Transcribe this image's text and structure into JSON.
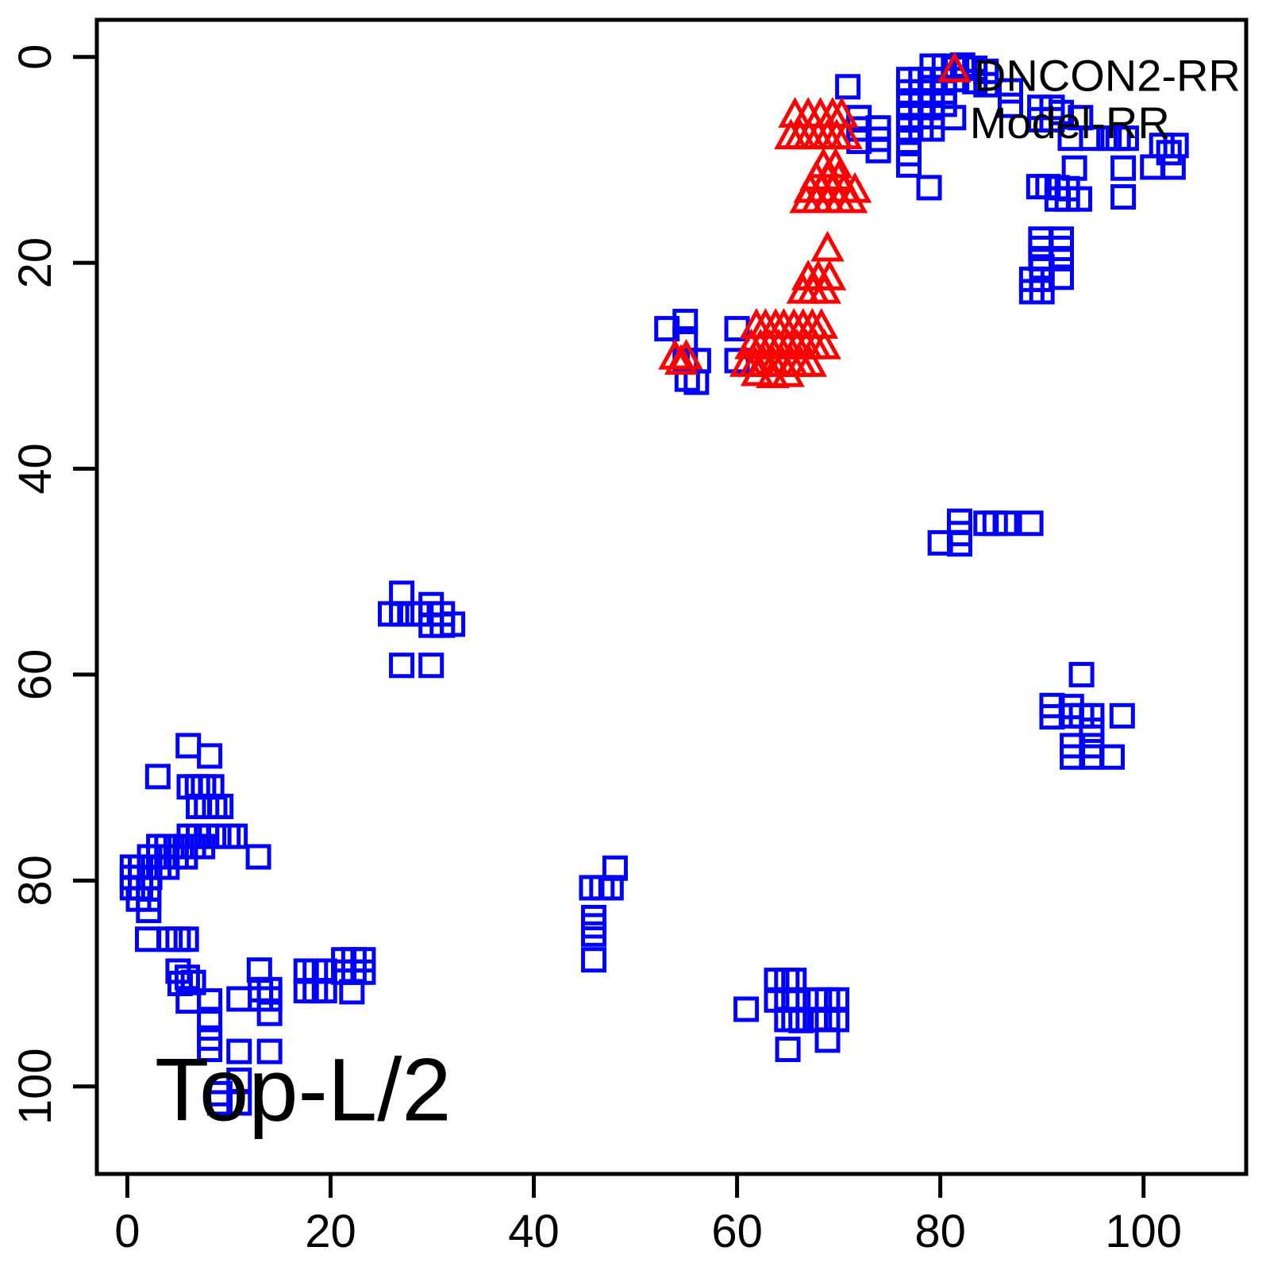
{
  "figure": {
    "background": "#FFFFFF",
    "axis_color": "#000000",
    "text_color": "#000000"
  },
  "chart_data": {
    "type": "scatter",
    "title": "",
    "xlabel": "",
    "ylabel": "",
    "grid": false,
    "x_ticks": [
      0,
      20,
      40,
      60,
      80,
      100
    ],
    "y_ticks": [
      0,
      20,
      40,
      60,
      80,
      100
    ],
    "xlim": [
      -3.0,
      110.1
    ],
    "ylim": [
      -3.6,
      108.5
    ],
    "y_axis_inverted": true,
    "annotation": {
      "text": "Top-L/2",
      "x": 2.7,
      "y": 103.3
    },
    "legend": {
      "position": "top-right",
      "entries": [
        {
          "label": "DNCON2-RR",
          "x": 83.3,
          "y": 3.3
        },
        {
          "label": "Model-RR",
          "x": 82.9,
          "y": 7.9
        }
      ]
    },
    "series": [
      {
        "name": "DNCON2-RR",
        "marker": "square",
        "color": "#0000FF",
        "points": [
          [
            79.2,
            0.9
          ],
          [
            80.4,
            0.9
          ],
          [
            81.6,
            1.1
          ],
          [
            82.2,
            0.8
          ],
          [
            83.4,
            1.1
          ],
          [
            84.5,
            1.4
          ],
          [
            83.4,
            2.4
          ],
          [
            84.5,
            2.7
          ],
          [
            76.9,
            2.2
          ],
          [
            78.1,
            2.2
          ],
          [
            79.2,
            2.2
          ],
          [
            80.4,
            2.2
          ],
          [
            81.6,
            2.2
          ],
          [
            76.9,
            3.4
          ],
          [
            78.1,
            3.4
          ],
          [
            79.2,
            3.4
          ],
          [
            80.4,
            3.4
          ],
          [
            76.9,
            4.6
          ],
          [
            78.1,
            4.6
          ],
          [
            79.2,
            4.6
          ],
          [
            80.4,
            4.6
          ],
          [
            76.9,
            5.8
          ],
          [
            78.1,
            5.8
          ],
          [
            79.2,
            5.8
          ],
          [
            81.3,
            5.9
          ],
          [
            76.9,
            7.0
          ],
          [
            78.1,
            7.0
          ],
          [
            79.2,
            7.0
          ],
          [
            76.9,
            8.2
          ],
          [
            76.9,
            9.4
          ],
          [
            76.9,
            10.5
          ],
          [
            78.9,
            12.7
          ],
          [
            70.9,
            2.9
          ],
          [
            72.0,
            5.9
          ],
          [
            72.0,
            7.0
          ],
          [
            72.0,
            8.2
          ],
          [
            73.9,
            6.9
          ],
          [
            73.9,
            8.0
          ],
          [
            73.9,
            9.1
          ],
          [
            86.9,
            3.3
          ],
          [
            86.9,
            4.7
          ],
          [
            89.8,
            4.9
          ],
          [
            91.0,
            4.9
          ],
          [
            89.8,
            6.1
          ],
          [
            91.0,
            6.1
          ],
          [
            91.9,
            5.4
          ],
          [
            93.8,
            5.9
          ],
          [
            92.8,
            7.9
          ],
          [
            94.9,
            7.9
          ],
          [
            96.6,
            7.9
          ],
          [
            97.5,
            7.9
          ],
          [
            98.3,
            7.9
          ],
          [
            101.8,
            8.6
          ],
          [
            103.2,
            8.6
          ],
          [
            102.5,
            9.3
          ],
          [
            100.9,
            10.7
          ],
          [
            102.9,
            10.7
          ],
          [
            93.2,
            10.8
          ],
          [
            98.0,
            10.8
          ],
          [
            98.0,
            13.6
          ],
          [
            93.7,
            13.8
          ],
          [
            89.7,
            12.6
          ],
          [
            90.6,
            12.6
          ],
          [
            91.5,
            12.7
          ],
          [
            92.5,
            12.8
          ],
          [
            91.5,
            13.8
          ],
          [
            92.5,
            13.8
          ],
          [
            89.9,
            17.7
          ],
          [
            89.9,
            18.6
          ],
          [
            89.9,
            19.6
          ],
          [
            91.9,
            17.7
          ],
          [
            91.9,
            18.6
          ],
          [
            91.9,
            19.6
          ],
          [
            90.0,
            20.4
          ],
          [
            89.0,
            21.6
          ],
          [
            90.0,
            21.6
          ],
          [
            91.9,
            21.4
          ],
          [
            89.0,
            22.8
          ],
          [
            90.0,
            22.8
          ],
          [
            54.9,
            25.7
          ],
          [
            53.1,
            26.4
          ],
          [
            54.9,
            27.4
          ],
          [
            54.9,
            29.5
          ],
          [
            56.2,
            29.5
          ],
          [
            55.1,
            31.3
          ],
          [
            56.0,
            31.6
          ],
          [
            60.0,
            26.4
          ],
          [
            60.0,
            29.5
          ],
          [
            81.9,
            45.1
          ],
          [
            84.5,
            45.3
          ],
          [
            85.4,
            45.3
          ],
          [
            86.4,
            45.3
          ],
          [
            88.9,
            45.3
          ],
          [
            81.9,
            46.3
          ],
          [
            81.9,
            47.3
          ],
          [
            80.0,
            47.2
          ],
          [
            27.0,
            52.1
          ],
          [
            25.9,
            54.1
          ],
          [
            27.0,
            54.1
          ],
          [
            27.8,
            54.1
          ],
          [
            28.6,
            54.1
          ],
          [
            29.9,
            53.2
          ],
          [
            29.9,
            54.1
          ],
          [
            31.0,
            54.1
          ],
          [
            29.9,
            55.2
          ],
          [
            31.0,
            55.2
          ],
          [
            32.0,
            55.1
          ],
          [
            27.0,
            59.1
          ],
          [
            29.9,
            59.1
          ],
          [
            93.9,
            60.0
          ],
          [
            91.0,
            63.0
          ],
          [
            92.9,
            63.1
          ],
          [
            91.0,
            64.1
          ],
          [
            92.9,
            64.0
          ],
          [
            93.9,
            64.0
          ],
          [
            94.9,
            64.0
          ],
          [
            97.9,
            64.0
          ],
          [
            94.9,
            65.4
          ],
          [
            93.0,
            66.9
          ],
          [
            93.0,
            68.0
          ],
          [
            94.9,
            66.9
          ],
          [
            94.9,
            68.0
          ],
          [
            96.9,
            68.0
          ],
          [
            6.0,
            66.9
          ],
          [
            8.1,
            67.9
          ],
          [
            3.0,
            69.9
          ],
          [
            6.1,
            70.9
          ],
          [
            6.9,
            70.9
          ],
          [
            7.5,
            70.9
          ],
          [
            8.3,
            70.9
          ],
          [
            7.0,
            72.8
          ],
          [
            7.8,
            72.8
          ],
          [
            8.6,
            72.8
          ],
          [
            9.2,
            72.8
          ],
          [
            6.1,
            75.7
          ],
          [
            7.0,
            75.7
          ],
          [
            7.8,
            75.7
          ],
          [
            9.0,
            75.7
          ],
          [
            9.9,
            75.7
          ],
          [
            10.6,
            75.7
          ],
          [
            3.1,
            76.7
          ],
          [
            3.9,
            76.7
          ],
          [
            4.8,
            76.7
          ],
          [
            5.7,
            76.7
          ],
          [
            6.5,
            76.7
          ],
          [
            7.4,
            76.7
          ],
          [
            2.2,
            77.7
          ],
          [
            3.1,
            77.7
          ],
          [
            3.9,
            77.7
          ],
          [
            4.8,
            77.7
          ],
          [
            5.7,
            77.7
          ],
          [
            12.9,
            77.7
          ],
          [
            0.5,
            78.7
          ],
          [
            1.3,
            78.7
          ],
          [
            2.2,
            78.7
          ],
          [
            3.1,
            78.7
          ],
          [
            3.9,
            78.7
          ],
          [
            0.5,
            79.7
          ],
          [
            1.3,
            79.7
          ],
          [
            2.2,
            79.7
          ],
          [
            0.5,
            80.7
          ],
          [
            1.3,
            80.7
          ],
          [
            2.1,
            80.8
          ],
          [
            1.1,
            81.8
          ],
          [
            2.1,
            81.8
          ],
          [
            2.1,
            82.9
          ],
          [
            2.0,
            85.7
          ],
          [
            4.2,
            85.7
          ],
          [
            5.0,
            85.7
          ],
          [
            5.8,
            85.7
          ],
          [
            5.0,
            88.8
          ],
          [
            5.9,
            89.4
          ],
          [
            6.5,
            89.9
          ],
          [
            5.2,
            90.0
          ],
          [
            6.0,
            91.7
          ],
          [
            8.1,
            91.7
          ],
          [
            8.1,
            93.5
          ],
          [
            8.1,
            95.3
          ],
          [
            8.1,
            96.4
          ],
          [
            11.0,
            96.6
          ],
          [
            14.0,
            96.6
          ],
          [
            13.0,
            88.7
          ],
          [
            11.0,
            91.5
          ],
          [
            13.1,
            90.6
          ],
          [
            14.0,
            90.6
          ],
          [
            13.1,
            91.5
          ],
          [
            14.0,
            91.5
          ],
          [
            14.0,
            92.9
          ],
          [
            17.6,
            88.8
          ],
          [
            18.5,
            88.8
          ],
          [
            19.4,
            88.8
          ],
          [
            17.6,
            90.7
          ],
          [
            18.5,
            90.7
          ],
          [
            19.4,
            90.7
          ],
          [
            21.3,
            87.7
          ],
          [
            22.3,
            87.7
          ],
          [
            23.2,
            87.7
          ],
          [
            21.3,
            88.9
          ],
          [
            22.3,
            88.9
          ],
          [
            23.2,
            88.9
          ],
          [
            22.1,
            90.8
          ],
          [
            11.0,
            99.4
          ],
          [
            9.1,
            100.7
          ],
          [
            11.0,
            101.6
          ],
          [
            9.1,
            101.6
          ],
          [
            48.0,
            78.8
          ],
          [
            45.7,
            80.7
          ],
          [
            46.7,
            80.7
          ],
          [
            47.6,
            80.7
          ],
          [
            45.9,
            83.6
          ],
          [
            45.9,
            84.4
          ],
          [
            45.9,
            85.2
          ],
          [
            45.9,
            87.7
          ],
          [
            60.9,
            92.5
          ],
          [
            63.9,
            89.7
          ],
          [
            64.9,
            89.7
          ],
          [
            65.6,
            89.7
          ],
          [
            63.9,
            91.6
          ],
          [
            64.9,
            91.6
          ],
          [
            65.6,
            91.6
          ],
          [
            64.9,
            93.5
          ],
          [
            65.6,
            93.5
          ],
          [
            66.3,
            93.6
          ],
          [
            65.0,
            96.4
          ],
          [
            68.1,
            91.6
          ],
          [
            68.9,
            91.6
          ],
          [
            69.8,
            91.6
          ],
          [
            68.1,
            93.5
          ],
          [
            68.9,
            93.5
          ],
          [
            69.8,
            93.5
          ],
          [
            68.9,
            95.5
          ]
        ]
      },
      {
        "name": "Model-RR",
        "marker": "triangle",
        "color": "#FF0000",
        "points": [
          [
            81.4,
            1.2
          ],
          [
            65.7,
            5.6
          ],
          [
            67.0,
            5.6
          ],
          [
            68.2,
            5.6
          ],
          [
            69.4,
            5.6
          ],
          [
            70.3,
            5.6
          ],
          [
            65.3,
            7.7
          ],
          [
            66.2,
            7.7
          ],
          [
            67.1,
            7.7
          ],
          [
            68.0,
            7.7
          ],
          [
            68.9,
            7.7
          ],
          [
            69.8,
            7.7
          ],
          [
            70.7,
            7.7
          ],
          [
            68.5,
            10.5
          ],
          [
            69.7,
            10.5
          ],
          [
            67.8,
            11.7
          ],
          [
            68.9,
            11.7
          ],
          [
            70.0,
            11.7
          ],
          [
            67.2,
            12.9
          ],
          [
            68.3,
            12.9
          ],
          [
            69.4,
            12.9
          ],
          [
            70.5,
            12.9
          ],
          [
            71.6,
            12.9
          ],
          [
            66.8,
            13.9
          ],
          [
            67.9,
            13.9
          ],
          [
            69.0,
            13.9
          ],
          [
            70.1,
            13.9
          ],
          [
            71.2,
            13.9
          ],
          [
            68.9,
            18.6
          ],
          [
            67.0,
            21.4
          ],
          [
            68.0,
            21.4
          ],
          [
            69.1,
            21.4
          ],
          [
            66.5,
            22.7
          ],
          [
            67.5,
            22.7
          ],
          [
            68.6,
            22.7
          ],
          [
            61.9,
            26.1
          ],
          [
            62.8,
            26.1
          ],
          [
            63.8,
            26.1
          ],
          [
            64.6,
            26.1
          ],
          [
            65.6,
            26.1
          ],
          [
            66.5,
            26.1
          ],
          [
            67.4,
            26.1
          ],
          [
            68.3,
            26.1
          ],
          [
            61.4,
            28.1
          ],
          [
            62.3,
            28.1
          ],
          [
            63.2,
            28.1
          ],
          [
            64.1,
            28.1
          ],
          [
            65.0,
            28.1
          ],
          [
            65.9,
            28.1
          ],
          [
            66.8,
            28.1
          ],
          [
            67.7,
            28.1
          ],
          [
            68.6,
            28.1
          ],
          [
            60.9,
            29.8
          ],
          [
            61.8,
            29.8
          ],
          [
            62.7,
            29.8
          ],
          [
            63.6,
            29.8
          ],
          [
            64.5,
            29.8
          ],
          [
            65.4,
            29.8
          ],
          [
            66.3,
            29.8
          ],
          [
            67.2,
            29.8
          ],
          [
            62.0,
            30.7
          ],
          [
            63.5,
            30.9
          ],
          [
            65.0,
            30.8
          ],
          [
            53.9,
            29.1
          ],
          [
            55.0,
            29.1
          ],
          [
            54.5,
            29.6
          ]
        ]
      }
    ]
  }
}
